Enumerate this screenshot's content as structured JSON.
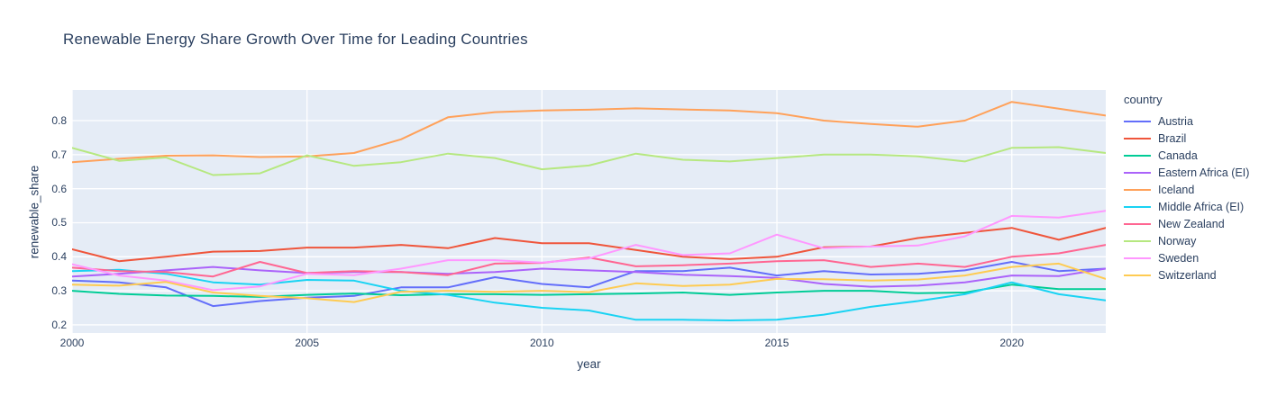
{
  "title": "Renewable Energy Share Growth Over Time for Leading Countries",
  "legend": {
    "title": "country"
  },
  "colors": {
    "plot_background": "#E5ECF6",
    "gridline": "#FFFFFF",
    "text": "#2A3F5F"
  },
  "chart_data": {
    "type": "line",
    "title": "Renewable Energy Share Growth Over Time for Leading Countries",
    "xlabel": "year",
    "ylabel": "renewable_share",
    "legend_title": "country",
    "legend_position": "right",
    "grid": true,
    "xlim": [
      2000,
      2022
    ],
    "ylim": [
      0.176,
      0.89
    ],
    "xticks": [
      2000,
      2005,
      2010,
      2015,
      2020
    ],
    "yticks": [
      0.2,
      0.3,
      0.4,
      0.5,
      0.6,
      0.7,
      0.8
    ],
    "x": [
      2000,
      2001,
      2002,
      2003,
      2004,
      2005,
      2006,
      2007,
      2008,
      2009,
      2010,
      2011,
      2012,
      2013,
      2014,
      2015,
      2016,
      2017,
      2018,
      2019,
      2020,
      2021,
      2022
    ],
    "series": [
      {
        "name": "Austria",
        "color": "#636EFA",
        "values": [
          0.33,
          0.325,
          0.31,
          0.255,
          0.27,
          0.28,
          0.285,
          0.31,
          0.31,
          0.34,
          0.32,
          0.31,
          0.358,
          0.358,
          0.368,
          0.345,
          0.358,
          0.348,
          0.35,
          0.36,
          0.385,
          0.358,
          0.365
        ]
      },
      {
        "name": "Brazil",
        "color": "#EF553B",
        "values": [
          0.422,
          0.387,
          0.4,
          0.415,
          0.417,
          0.427,
          0.427,
          0.435,
          0.425,
          0.455,
          0.44,
          0.44,
          0.42,
          0.4,
          0.393,
          0.4,
          0.428,
          0.43,
          0.455,
          0.47,
          0.485,
          0.45,
          0.485
        ]
      },
      {
        "name": "Canada",
        "color": "#00CC96",
        "values": [
          0.3,
          0.291,
          0.286,
          0.285,
          0.282,
          0.288,
          0.292,
          0.287,
          0.29,
          0.29,
          0.288,
          0.29,
          0.292,
          0.295,
          0.288,
          0.295,
          0.3,
          0.3,
          0.293,
          0.295,
          0.318,
          0.305,
          0.305
        ]
      },
      {
        "name": "Eastern Africa (EI)",
        "color": "#AB63FA",
        "values": [
          0.342,
          0.35,
          0.36,
          0.37,
          0.36,
          0.352,
          0.355,
          0.355,
          0.35,
          0.355,
          0.365,
          0.36,
          0.355,
          0.347,
          0.343,
          0.338,
          0.32,
          0.312,
          0.315,
          0.325,
          0.345,
          0.343,
          0.365
        ]
      },
      {
        "name": "Iceland",
        "color": "#FFA15A",
        "values": [
          0.678,
          0.688,
          0.697,
          0.698,
          0.693,
          0.695,
          0.705,
          0.745,
          0.81,
          0.825,
          0.83,
          0.832,
          0.836,
          0.833,
          0.83,
          0.822,
          0.8,
          0.79,
          0.782,
          0.8,
          0.855,
          0.835,
          0.815
        ]
      },
      {
        "name": "Middle Africa (EI)",
        "color": "#19D3F3",
        "values": [
          0.358,
          0.362,
          0.35,
          0.325,
          0.318,
          0.332,
          0.33,
          0.3,
          0.288,
          0.265,
          0.25,
          0.242,
          0.215,
          0.215,
          0.213,
          0.215,
          0.23,
          0.253,
          0.27,
          0.29,
          0.325,
          0.29,
          0.272
        ]
      },
      {
        "name": "New Zealand",
        "color": "#FF6692",
        "values": [
          0.368,
          0.358,
          0.355,
          0.342,
          0.385,
          0.352,
          0.358,
          0.355,
          0.346,
          0.38,
          0.382,
          0.398,
          0.372,
          0.375,
          0.38,
          0.387,
          0.39,
          0.37,
          0.38,
          0.37,
          0.4,
          0.41,
          0.435
        ]
      },
      {
        "name": "Norway",
        "color": "#B6E880",
        "values": [
          0.72,
          0.682,
          0.692,
          0.64,
          0.645,
          0.698,
          0.667,
          0.678,
          0.703,
          0.69,
          0.657,
          0.668,
          0.703,
          0.685,
          0.68,
          0.69,
          0.7,
          0.7,
          0.695,
          0.68,
          0.72,
          0.722,
          0.705
        ]
      },
      {
        "name": "Sweden",
        "color": "#FF97FF",
        "values": [
          0.378,
          0.345,
          0.33,
          0.302,
          0.313,
          0.35,
          0.346,
          0.365,
          0.39,
          0.39,
          0.383,
          0.395,
          0.435,
          0.405,
          0.41,
          0.465,
          0.425,
          0.43,
          0.433,
          0.46,
          0.52,
          0.515,
          0.535
        ]
      },
      {
        "name": "Switzerland",
        "color": "#FECB52",
        "values": [
          0.318,
          0.315,
          0.326,
          0.295,
          0.285,
          0.278,
          0.267,
          0.297,
          0.3,
          0.297,
          0.3,
          0.296,
          0.322,
          0.314,
          0.318,
          0.335,
          0.334,
          0.33,
          0.333,
          0.345,
          0.37,
          0.38,
          0.335
        ]
      }
    ]
  }
}
